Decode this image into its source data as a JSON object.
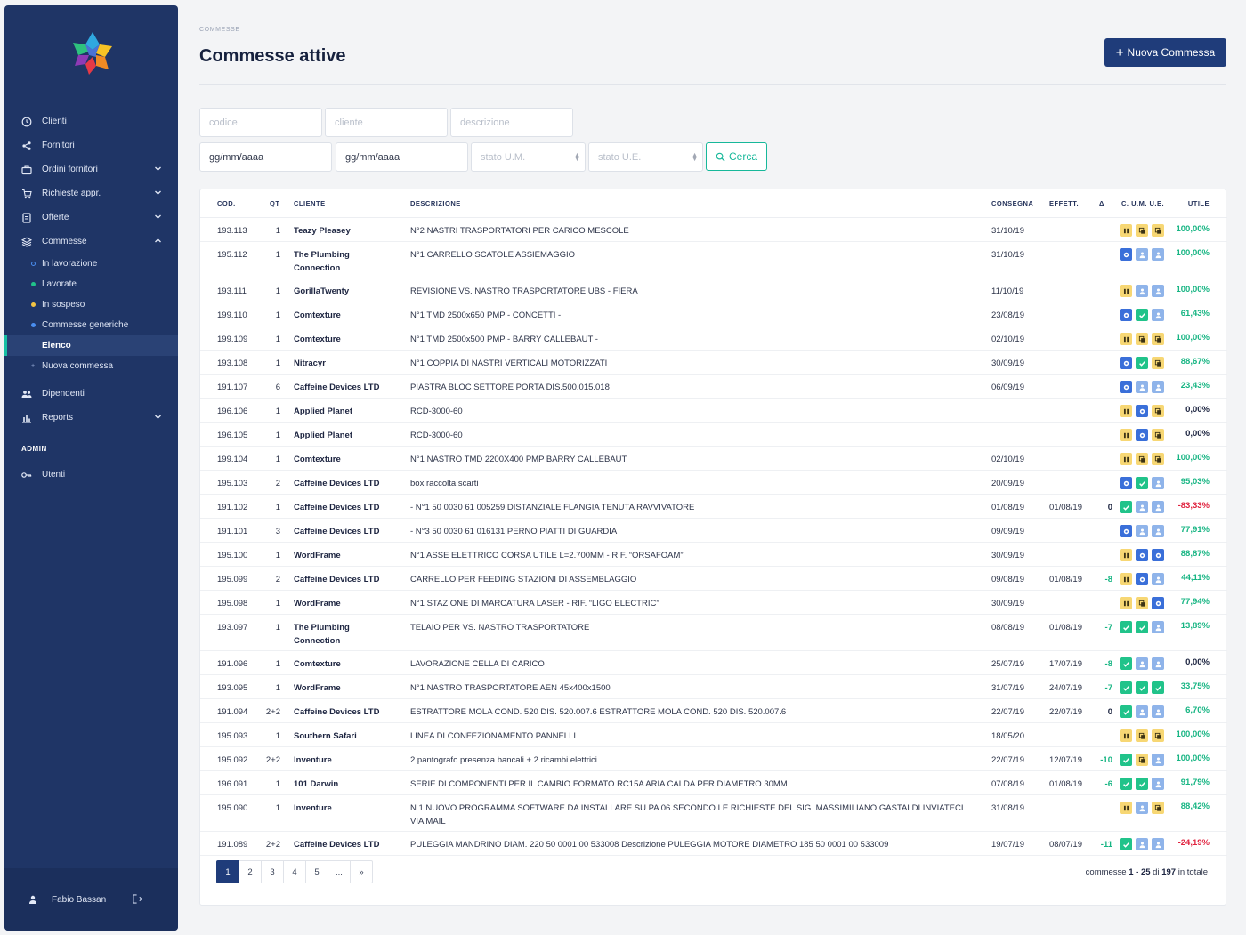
{
  "sidebar": {
    "nav": [
      {
        "label": "Clienti",
        "icon": "clienti-icon",
        "chevron": false
      },
      {
        "label": "Fornitori",
        "icon": "share-icon",
        "chevron": false
      },
      {
        "label": "Ordini fornitori",
        "icon": "briefcase-icon",
        "chevron": true
      },
      {
        "label": "Richieste appr.",
        "icon": "cart-icon",
        "chevron": true
      },
      {
        "label": "Offerte",
        "icon": "document-icon",
        "chevron": true
      },
      {
        "label": "Commesse",
        "icon": "layers-icon",
        "chevron": true,
        "expanded": true
      }
    ],
    "sub": [
      {
        "label": "In lavorazione",
        "dot": "outline-blue"
      },
      {
        "label": "Lavorate",
        "dot": "green"
      },
      {
        "label": "In sospeso",
        "dot": "yellow"
      },
      {
        "label": "Commesse generiche",
        "dot": "blue"
      },
      {
        "label": "Elenco",
        "dot": "none",
        "active": true
      },
      {
        "label": "Nuova commessa",
        "dot": "plus"
      }
    ],
    "nav2": [
      {
        "label": "Dipendenti",
        "icon": "users-icon",
        "chevron": false
      },
      {
        "label": "Reports",
        "icon": "bar-chart-icon",
        "chevron": true
      }
    ],
    "admin_title": "ADMIN",
    "admin": [
      {
        "label": "Utenti",
        "icon": "key-icon"
      }
    ],
    "user_name": "Fabio Bassan"
  },
  "header": {
    "breadcrumb": "COMMESSE",
    "title": "Commesse attive",
    "new_button": "Nuova Commessa"
  },
  "filters": {
    "codice_placeholder": "codice",
    "cliente_placeholder": "cliente",
    "descrizione_placeholder": "descrizione",
    "date_from": "gg/mm/aaaa",
    "date_to": "gg/mm/aaaa",
    "stato_um": "stato U.M.",
    "stato_ue": "stato U.E.",
    "search_label": "Cerca"
  },
  "table": {
    "headers": {
      "cod": "COD.",
      "qt": "QT",
      "cliente": "CLIENTE",
      "descrizione": "DESCRIZIONE",
      "consegna": "CONSEGNA",
      "effett": "EFFETT.",
      "delta": "Δ",
      "cume": "C. U.M. U.E.",
      "utile": "UTILE"
    },
    "colors": {
      "positive": "#17b583",
      "negative": "#e0233f",
      "neutral": "#1c2440"
    },
    "rows": [
      {
        "cod": "193.113",
        "qt": "1",
        "cliente": [
          "Teazy Pleasey"
        ],
        "desc": [
          "N°2 NASTRI TRASPORTATORI PER CARICO MESCOLE"
        ],
        "consegna": "31/10/19",
        "effett": "",
        "delta": "",
        "icons": [
          "yellow-pause",
          "yellow-copy",
          "yellow-copy"
        ],
        "utile": "100,00%",
        "sign": "pos"
      },
      {
        "cod": "195.112",
        "qt": "1",
        "cliente": [
          "The Plumbing",
          "Connection"
        ],
        "desc": [
          "N°1 CARRELLO SCATOLE ASSIEMAGGIO"
        ],
        "consegna": "31/10/19",
        "effett": "",
        "delta": "",
        "icons": [
          "blue-gear",
          "lblue-user",
          "lblue-user"
        ],
        "utile": "100,00%",
        "sign": "pos"
      },
      {
        "cod": "193.111",
        "qt": "1",
        "cliente": [
          "GorillaTwenty"
        ],
        "desc": [
          "REVISIONE VS. NASTRO TRASPORTATORE UBS - FIERA"
        ],
        "consegna": "11/10/19",
        "effett": "",
        "delta": "",
        "icons": [
          "yellow-pause",
          "lblue-user",
          "lblue-user"
        ],
        "utile": "100,00%",
        "sign": "pos"
      },
      {
        "cod": "199.110",
        "qt": "1",
        "cliente": [
          "Comtexture"
        ],
        "desc": [
          "N°1 TMD 2500x650 PMP - CONCETTI -"
        ],
        "consegna": "23/08/19",
        "effett": "",
        "delta": "",
        "icons": [
          "blue-gear",
          "green-check",
          "lblue-user"
        ],
        "utile": "61,43%",
        "sign": "pos"
      },
      {
        "cod": "199.109",
        "qt": "1",
        "cliente": [
          "Comtexture"
        ],
        "desc": [
          "N°1 TMD 2500x500 PMP - BARRY CALLEBAUT -"
        ],
        "consegna": "02/10/19",
        "effett": "",
        "delta": "",
        "icons": [
          "yellow-pause",
          "yellow-copy",
          "yellow-copy"
        ],
        "utile": "100,00%",
        "sign": "pos"
      },
      {
        "cod": "193.108",
        "qt": "1",
        "cliente": [
          "Nitracyr"
        ],
        "desc": [
          "N°1 COPPIA DI NASTRI VERTICALI MOTORIZZATI"
        ],
        "consegna": "30/09/19",
        "effett": "",
        "delta": "",
        "icons": [
          "blue-gear",
          "green-check",
          "yellow-copy"
        ],
        "utile": "88,67%",
        "sign": "pos"
      },
      {
        "cod": "191.107",
        "qt": "6",
        "cliente": [
          "Caffeine Devices LTD"
        ],
        "desc": [
          "PIASTRA BLOC SETTORE PORTA DIS.500.015.018"
        ],
        "consegna": "06/09/19",
        "effett": "",
        "delta": "",
        "icons": [
          "blue-gear",
          "lblue-user",
          "lblue-user"
        ],
        "utile": "23,43%",
        "sign": "pos"
      },
      {
        "cod": "196.106",
        "qt": "1",
        "cliente": [
          "Applied Planet"
        ],
        "desc": [
          "RCD-3000-60"
        ],
        "consegna": "",
        "effett": "",
        "delta": "",
        "icons": [
          "yellow-pause",
          "blue-gear",
          "yellow-copy"
        ],
        "utile": "0,00%",
        "sign": "zero"
      },
      {
        "cod": "196.105",
        "qt": "1",
        "cliente": [
          "Applied Planet"
        ],
        "desc": [
          "RCD-3000-60"
        ],
        "consegna": "",
        "effett": "",
        "delta": "",
        "icons": [
          "yellow-pause",
          "blue-gear",
          "yellow-copy"
        ],
        "utile": "0,00%",
        "sign": "zero"
      },
      {
        "cod": "199.104",
        "qt": "1",
        "cliente": [
          "Comtexture"
        ],
        "desc": [
          "N°1 NASTRO TMD 2200X400 PMP BARRY CALLEBAUT"
        ],
        "consegna": "02/10/19",
        "effett": "",
        "delta": "",
        "icons": [
          "yellow-pause",
          "yellow-copy",
          "yellow-copy"
        ],
        "utile": "100,00%",
        "sign": "pos"
      },
      {
        "cod": "195.103",
        "qt": "2",
        "cliente": [
          "Caffeine Devices LTD"
        ],
        "desc": [
          "box raccolta scarti"
        ],
        "consegna": "20/09/19",
        "effett": "",
        "delta": "",
        "icons": [
          "blue-gear",
          "green-check",
          "lblue-user"
        ],
        "utile": "95,03%",
        "sign": "pos"
      },
      {
        "cod": "191.102",
        "qt": "1",
        "cliente": [
          "Caffeine Devices LTD"
        ],
        "desc": [
          "- N°1 50 0030 61 005259 DISTANZIALE FLANGIA TENUTA RAVVIVATORE"
        ],
        "consegna": "01/08/19",
        "effett": "01/08/19",
        "delta": "0",
        "icons": [
          "green-check",
          "lblue-user",
          "lblue-user"
        ],
        "utile": "-83,33%",
        "sign": "neg"
      },
      {
        "cod": "191.101",
        "qt": "3",
        "cliente": [
          "Caffeine Devices LTD"
        ],
        "desc": [
          "- N°3 50 0030 61 016131 PERNO PIATTI DI GUARDIA"
        ],
        "consegna": "09/09/19",
        "effett": "",
        "delta": "",
        "icons": [
          "blue-gear",
          "lblue-user",
          "lblue-user"
        ],
        "utile": "77,91%",
        "sign": "pos"
      },
      {
        "cod": "195.100",
        "qt": "1",
        "cliente": [
          "WordFrame"
        ],
        "desc": [
          "N°1 ASSE ELETTRICO CORSA UTILE L=2.700MM - RIF. “ORSAFOAM”"
        ],
        "consegna": "30/09/19",
        "effett": "",
        "delta": "",
        "icons": [
          "yellow-pause",
          "blue-gear",
          "blue-gear"
        ],
        "utile": "88,87%",
        "sign": "pos"
      },
      {
        "cod": "195.099",
        "qt": "2",
        "cliente": [
          "Caffeine Devices LTD"
        ],
        "desc": [
          "CARRELLO PER FEEDING STAZIONI DI ASSEMBLAGGIO"
        ],
        "consegna": "09/08/19",
        "effett": "01/08/19",
        "delta": "-8",
        "icons": [
          "yellow-pause",
          "blue-gear",
          "lblue-user"
        ],
        "utile": "44,11%",
        "sign": "pos"
      },
      {
        "cod": "195.098",
        "qt": "1",
        "cliente": [
          "WordFrame"
        ],
        "desc": [
          "N°1 STAZIONE DI MARCATURA LASER - RIF. “LIGO ELECTRIC”"
        ],
        "consegna": "30/09/19",
        "effett": "",
        "delta": "",
        "icons": [
          "yellow-pause",
          "yellow-copy",
          "blue-gear"
        ],
        "utile": "77,94%",
        "sign": "pos"
      },
      {
        "cod": "193.097",
        "qt": "1",
        "cliente": [
          "The Plumbing",
          "Connection"
        ],
        "desc": [
          "TELAIO PER VS. NASTRO TRASPORTATORE"
        ],
        "consegna": "08/08/19",
        "effett": "01/08/19",
        "delta": "-7",
        "icons": [
          "green-check",
          "green-check",
          "lblue-user"
        ],
        "utile": "13,89%",
        "sign": "pos"
      },
      {
        "cod": "191.096",
        "qt": "1",
        "cliente": [
          "Comtexture"
        ],
        "desc": [
          "LAVORAZIONE CELLA DI CARICO"
        ],
        "consegna": "25/07/19",
        "effett": "17/07/19",
        "delta": "-8",
        "icons": [
          "green-check",
          "lblue-user",
          "lblue-user"
        ],
        "utile": "0,00%",
        "sign": "zero"
      },
      {
        "cod": "193.095",
        "qt": "1",
        "cliente": [
          "WordFrame"
        ],
        "desc": [
          "N°1 NASTRO TRASPORTATORE AEN 45x400x1500"
        ],
        "consegna": "31/07/19",
        "effett": "24/07/19",
        "delta": "-7",
        "icons": [
          "green-check",
          "green-check",
          "green-check"
        ],
        "utile": "33,75%",
        "sign": "pos"
      },
      {
        "cod": "191.094",
        "qt": "2+2",
        "cliente": [
          "Caffeine Devices LTD"
        ],
        "desc": [
          "ESTRATTORE MOLA COND. 520 DIS. 520.007.6 ESTRATTORE MOLA COND. 520 DIS. 520.007.6"
        ],
        "consegna": "22/07/19",
        "effett": "22/07/19",
        "delta": "0",
        "icons": [
          "green-check",
          "lblue-user",
          "lblue-user"
        ],
        "utile": "6,70%",
        "sign": "pos"
      },
      {
        "cod": "195.093",
        "qt": "1",
        "cliente": [
          "Southern Safari"
        ],
        "desc": [
          "LINEA DI CONFEZIONAMENTO PANNELLI"
        ],
        "consegna": "18/05/20",
        "effett": "",
        "delta": "",
        "icons": [
          "yellow-pause",
          "yellow-copy",
          "yellow-copy"
        ],
        "utile": "100,00%",
        "sign": "pos"
      },
      {
        "cod": "195.092",
        "qt": "2+2",
        "cliente": [
          "Inventure"
        ],
        "desc": [
          "2 pantografo presenza bancali + 2 ricambi elettrici"
        ],
        "consegna": "22/07/19",
        "effett": "12/07/19",
        "delta": "-10",
        "icons": [
          "green-check",
          "yellow-copy",
          "lblue-user"
        ],
        "utile": "100,00%",
        "sign": "pos"
      },
      {
        "cod": "196.091",
        "qt": "1",
        "cliente": [
          "101 Darwin"
        ],
        "desc": [
          "SERIE DI COMPONENTI PER IL CAMBIO FORMATO RC15A ARIA CALDA PER DIAMETRO 30MM"
        ],
        "consegna": "07/08/19",
        "effett": "01/08/19",
        "delta": "-6",
        "icons": [
          "green-check",
          "green-check",
          "lblue-user"
        ],
        "utile": "91,79%",
        "sign": "pos"
      },
      {
        "cod": "195.090",
        "qt": "1",
        "cliente": [
          "Inventure"
        ],
        "desc": [
          "N.1 NUOVO PROGRAMMA SOFTWARE DA INSTALLARE SU PA 06 SECONDO LE RICHIESTE DEL SIG. MASSIMILIANO GASTALDI INVIATECI",
          "VIA MAIL"
        ],
        "consegna": "31/08/19",
        "effett": "",
        "delta": "",
        "icons": [
          "yellow-pause",
          "lblue-user",
          "yellow-copy"
        ],
        "utile": "88,42%",
        "sign": "pos"
      },
      {
        "cod": "191.089",
        "qt": "2+2",
        "cliente": [
          "Caffeine Devices LTD"
        ],
        "desc": [
          "PULEGGIA MANDRINO DIAM. 220 50 0001 00 533008 Descrizione PULEGGIA MOTORE DIAMETRO 185 50 0001 00 533009"
        ],
        "consegna": "19/07/19",
        "effett": "08/07/19",
        "delta": "-11",
        "icons": [
          "green-check",
          "lblue-user",
          "lblue-user"
        ],
        "utile": "-24,19%",
        "sign": "neg"
      }
    ]
  },
  "pagination": {
    "pages": [
      "1",
      "2",
      "3",
      "4",
      "5",
      "...",
      "»"
    ],
    "active": "1",
    "summary_prefix": "commesse",
    "summary_range": "1 - 25",
    "summary_of": "di",
    "summary_total": "197",
    "summary_suffix": "in totale"
  }
}
